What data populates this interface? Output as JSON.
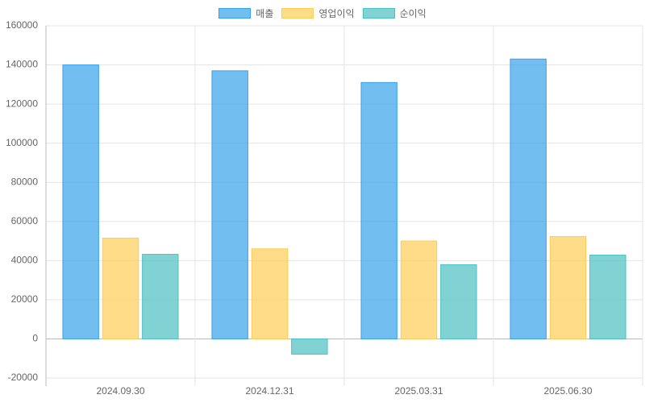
{
  "chart_data": {
    "type": "bar",
    "categories": [
      "2024.09.30",
      "2024.12.31",
      "2025.03.31",
      "2025.06.30"
    ],
    "series": [
      {
        "name": "매출",
        "color": "#36a2eb",
        "values": [
          140000,
          137000,
          131000,
          143000
        ]
      },
      {
        "name": "영업이익",
        "color": "#ffcd56",
        "values": [
          51500,
          46000,
          50000,
          52300
        ]
      },
      {
        "name": "순이익",
        "color": "#4bc0c0",
        "values": [
          43200,
          -7800,
          37900,
          42800
        ]
      }
    ],
    "ylim": [
      -20000,
      160000
    ],
    "yticks": [
      -20000,
      0,
      20000,
      40000,
      60000,
      80000,
      100000,
      120000,
      140000,
      160000
    ],
    "grid": true,
    "legend": "top"
  }
}
